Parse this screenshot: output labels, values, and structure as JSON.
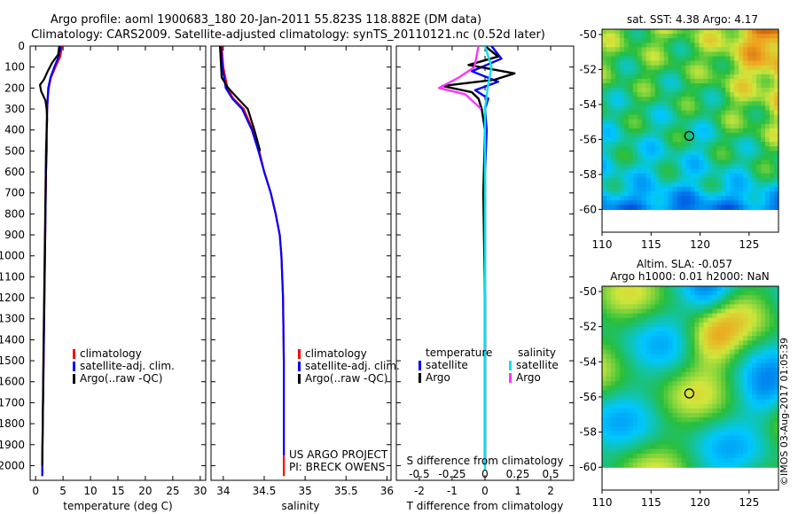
{
  "header": {
    "title_line1": "Argo profile: aoml 1900683_180 20-Jan-2011 55.823S 118.882E (DM data)",
    "title_line2": "Climatology: CARS2009. Satellite-adjusted climatology: synTS_20110121.nc (0.52d later)"
  },
  "colors": {
    "climatology": "#ff0000",
    "satellite": "#0000ff",
    "argo": "#000000",
    "sal_satellite": "#00e5ee",
    "sal_argo": "#ff33ff"
  },
  "depth_axis": {
    "ticks": [
      "0",
      "100",
      "200",
      "300",
      "400",
      "500",
      "600",
      "700",
      "800",
      "900",
      "1000",
      "1100",
      "1200",
      "1300",
      "1400",
      "1500",
      "1600",
      "1700",
      "1800",
      "1900",
      "2000"
    ]
  },
  "panels": {
    "temperature": {
      "xlabel": "temperature (deg C)",
      "xticks": [
        "0",
        "5",
        "10",
        "15",
        "20",
        "25",
        "30"
      ],
      "legend": [
        "climatology",
        "satellite-adj. clim.",
        "Argo(..raw -QC)"
      ]
    },
    "salinity": {
      "xlabel": "salinity",
      "xticks": [
        "34",
        "34.5",
        "35",
        "35.5",
        "36"
      ],
      "legend": [
        "climatology",
        "satellite-adj. clim.",
        "Argo(..raw -QC)"
      ],
      "credit1": "US ARGO PROJECT",
      "credit2": "PI: BRECK OWENS"
    },
    "difference": {
      "xlabel": "T difference from climatology",
      "xticks": [
        "-2",
        "-1",
        "0",
        "1",
        "2"
      ],
      "top_label": "S difference from climatology",
      "top_ticks": [
        "-0.5",
        "-0.25",
        "0",
        "0.25",
        "0.5"
      ],
      "legend_temp_title": "temperature",
      "legend_sal_title": "salinity",
      "legend_temp": [
        "satellite",
        "Argo"
      ],
      "legend_sal": [
        "satellite",
        "Argo"
      ]
    }
  },
  "maps": {
    "sst": {
      "title": "sat. SST: 4.38 Argo: 4.17",
      "yticks": [
        "-50",
        "-52",
        "-54",
        "-56",
        "-58",
        "-60"
      ],
      "xticks": [
        "110",
        "115",
        "120",
        "125"
      ]
    },
    "sla": {
      "title1": "Altim. SLA: -0.057",
      "title2": "Argo h1000: 0.01 h2000: NaN",
      "yticks": [
        "-50",
        "-52",
        "-54",
        "-56",
        "-58",
        "-60"
      ],
      "xticks": [
        "110",
        "115",
        "120",
        "125"
      ]
    }
  },
  "footer": {
    "stamp": "©IMOS 03-Aug-2017 01:05:39"
  },
  "chart_data": [
    {
      "type": "line",
      "title": "",
      "xlabel": "temperature (deg C)",
      "ylabel": "",
      "xlim": [
        -1,
        31
      ],
      "ylim": [
        2070,
        0
      ],
      "y_inverted": true,
      "series": [
        {
          "name": "climatology",
          "color": "#ff0000",
          "x": [
            4.8,
            4.5,
            3.6,
            2.8,
            2.4,
            2.2,
            2.1,
            2.0,
            2.0,
            1.9,
            1.8,
            1.7,
            1.6,
            1.5,
            1.4,
            1.3,
            1.2
          ],
          "y": [
            0,
            50,
            100,
            150,
            200,
            250,
            300,
            400,
            500,
            600,
            800,
            1000,
            1200,
            1400,
            1600,
            1800,
            2050
          ]
        },
        {
          "name": "satellite-adj. clim.",
          "color": "#0000ff",
          "x": [
            4.6,
            4.2,
            3.4,
            2.7,
            2.3,
            2.2,
            2.1,
            2.0,
            2.0,
            1.9,
            1.8,
            1.7,
            1.6,
            1.5,
            1.4,
            1.3,
            1.2
          ],
          "y": [
            0,
            50,
            100,
            150,
            200,
            250,
            300,
            400,
            500,
            600,
            800,
            1000,
            1200,
            1400,
            1600,
            1800,
            2050
          ]
        },
        {
          "name": "Argo(..raw -QC)",
          "color": "#000000",
          "x": [
            4.3,
            4.1,
            3.0,
            2.2,
            1.5,
            0.8,
            1.0,
            1.8,
            2.0,
            2.1,
            2.0,
            1.9,
            1.8,
            1.7,
            1.6,
            1.5,
            1.4,
            1.3,
            1.2
          ],
          "y": [
            0,
            40,
            80,
            120,
            160,
            185,
            215,
            260,
            300,
            350,
            400,
            500,
            700,
            900,
            1100,
            1300,
            1500,
            1800,
            2000
          ]
        }
      ]
    },
    {
      "type": "line",
      "title": "",
      "xlabel": "salinity",
      "ylabel": "",
      "xlim": [
        33.85,
        36.05
      ],
      "ylim": [
        2070,
        0
      ],
      "y_inverted": true,
      "series": [
        {
          "name": "climatology",
          "color": "#ff0000",
          "x": [
            33.98,
            34.0,
            34.05,
            34.12,
            34.25,
            34.36,
            34.44,
            34.5,
            34.58,
            34.64,
            34.69,
            34.71,
            34.73,
            34.74,
            34.74
          ],
          "y": [
            0,
            100,
            200,
            250,
            300,
            400,
            500,
            600,
            700,
            800,
            900,
            1000,
            1200,
            1500,
            2050
          ]
        },
        {
          "name": "satellite-adj. clim.",
          "color": "#0000ff",
          "x": [
            33.97,
            33.99,
            34.03,
            34.11,
            34.23,
            34.35,
            34.43,
            34.5,
            34.58,
            34.64,
            34.69,
            34.71,
            34.73,
            34.74,
            34.74
          ],
          "y": [
            0,
            100,
            200,
            250,
            300,
            400,
            500,
            600,
            700,
            800,
            900,
            1000,
            1200,
            1500,
            1950
          ]
        },
        {
          "name": "Argo(..raw -QC)",
          "color": "#000000",
          "x": [
            33.96,
            33.98,
            34.06,
            34.18,
            34.3,
            34.38,
            34.45
          ],
          "y": [
            0,
            150,
            200,
            250,
            300,
            400,
            500
          ]
        }
      ]
    },
    {
      "type": "line",
      "title": "",
      "xlabel": "T difference from climatology",
      "x2label": "S difference from climatology",
      "ylabel": "",
      "xlim": [
        -2.7,
        2.7
      ],
      "x2lim": [
        -0.675,
        0.675
      ],
      "ylim": [
        2070,
        0
      ],
      "y_inverted": true,
      "series": [
        {
          "name": "temperature satellite",
          "color": "#0000ff",
          "axis": "T",
          "x": [
            0.2,
            0.5,
            -0.4,
            0.4,
            -0.3,
            0.1,
            0.0,
            0.05,
            0.0,
            0.0,
            0.0,
            0.0
          ],
          "y": [
            0,
            60,
            120,
            170,
            210,
            250,
            300,
            400,
            600,
            1000,
            1500,
            2000
          ]
        },
        {
          "name": "temperature Argo",
          "color": "#000000",
          "axis": "T",
          "x": [
            0.0,
            0.4,
            -0.5,
            0.9,
            0.3,
            -1.3,
            -0.4,
            -0.2,
            -0.1,
            0.0,
            -0.05,
            0.0,
            0.0
          ],
          "y": [
            0,
            50,
            90,
            130,
            160,
            190,
            220,
            250,
            300,
            400,
            700,
            1200,
            2000
          ]
        },
        {
          "name": "salinity satellite",
          "color": "#00e5ee",
          "axis": "S",
          "x": [
            0.0,
            0.05,
            0.02,
            0.0,
            0.0,
            0.0,
            0.0,
            0.0
          ],
          "y": [
            0,
            100,
            200,
            300,
            500,
            1000,
            1500,
            2020
          ]
        },
        {
          "name": "salinity Argo",
          "color": "#ff33ff",
          "axis": "S",
          "x": [
            -0.05,
            -0.08,
            -0.2,
            -0.35,
            -0.15,
            -0.08,
            -0.03
          ],
          "y": [
            0,
            100,
            150,
            200,
            230,
            270,
            300
          ]
        }
      ]
    },
    {
      "type": "heatmap",
      "title": "sat. SST: 4.38 Argo: 4.17",
      "xlabel": "",
      "ylabel": "",
      "xlim": [
        110,
        128
      ],
      "ylim": [
        -61.3,
        -49.7
      ],
      "marker": {
        "x": 118.9,
        "y": -55.8
      }
    },
    {
      "type": "heatmap",
      "title": "Altim. SLA: -0.057  Argo h1000: 0.01 h2000: NaN",
      "xlabel": "",
      "ylabel": "",
      "xlim": [
        110,
        128
      ],
      "ylim": [
        -61.3,
        -49.7
      ],
      "marker": {
        "x": 118.9,
        "y": -55.8
      }
    }
  ]
}
